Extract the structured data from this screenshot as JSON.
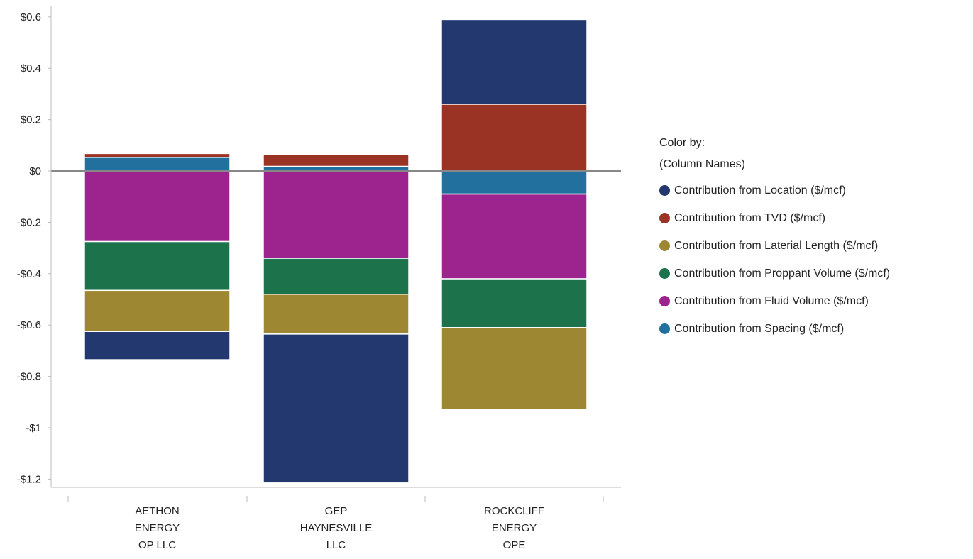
{
  "legend": {
    "title": "Color by:",
    "subtitle": "(Column Names)"
  },
  "chart_data": {
    "type": "bar",
    "stacked": true,
    "categories": [
      [
        "AETHON",
        "ENERGY",
        "OP LLC"
      ],
      [
        "GEP",
        "HAYNESVILLE",
        "LLC"
      ],
      [
        "ROCKCLIFF",
        "ENERGY",
        "OPE"
      ]
    ],
    "series": [
      {
        "name": "Contribution from Location ($/mcf)",
        "color": "#22386f",
        "values": [
          -0.11,
          -0.58,
          0.33
        ]
      },
      {
        "name": "Contribution from TVD ($/mcf)",
        "color": "#9b3324",
        "values": [
          0.015,
          0.045,
          0.26
        ]
      },
      {
        "name": "Contribution from Laterial Length ($/mcf)",
        "color": "#9e8733",
        "values": [
          -0.16,
          -0.155,
          -0.32
        ]
      },
      {
        "name": "Contribution from Proppant Volume ($/mcf)",
        "color": "#1c724a",
        "values": [
          -0.19,
          -0.14,
          -0.19
        ]
      },
      {
        "name": "Contribution from Fluid Volume ($/mcf)",
        "color": "#9d248e",
        "values": [
          -0.275,
          -0.34,
          -0.33
        ]
      },
      {
        "name": "Contribution from Spacing ($/mcf)",
        "color": "#22709e",
        "values": [
          0.053,
          0.018,
          -0.09
        ]
      }
    ],
    "stack_order_positive": [
      "Contribution from Spacing ($/mcf)",
      "Contribution from TVD ($/mcf)",
      "Contribution from Location ($/mcf)"
    ],
    "stack_order_negative": [
      "Contribution from Spacing ($/mcf)",
      "Contribution from Fluid Volume ($/mcf)",
      "Contribution from Proppant Volume ($/mcf)",
      "Contribution from Laterial Length ($/mcf)",
      "Contribution from Location ($/mcf)"
    ],
    "ylim": [
      -1.3,
      0.65
    ],
    "yticks": [
      0.6,
      0.4,
      0.2,
      0,
      -0.2,
      -0.4,
      -0.6,
      -0.8,
      -1,
      -1.2
    ],
    "ytick_labels": [
      "$0.6",
      "$0.4",
      "$0.2",
      "$0",
      "-$0.2",
      "-$0.4",
      "-$0.6",
      "-$0.8",
      "-$1",
      "-$1.2"
    ],
    "title": "",
    "xlabel": "",
    "ylabel": "",
    "legend_position": "right",
    "grid": false
  }
}
